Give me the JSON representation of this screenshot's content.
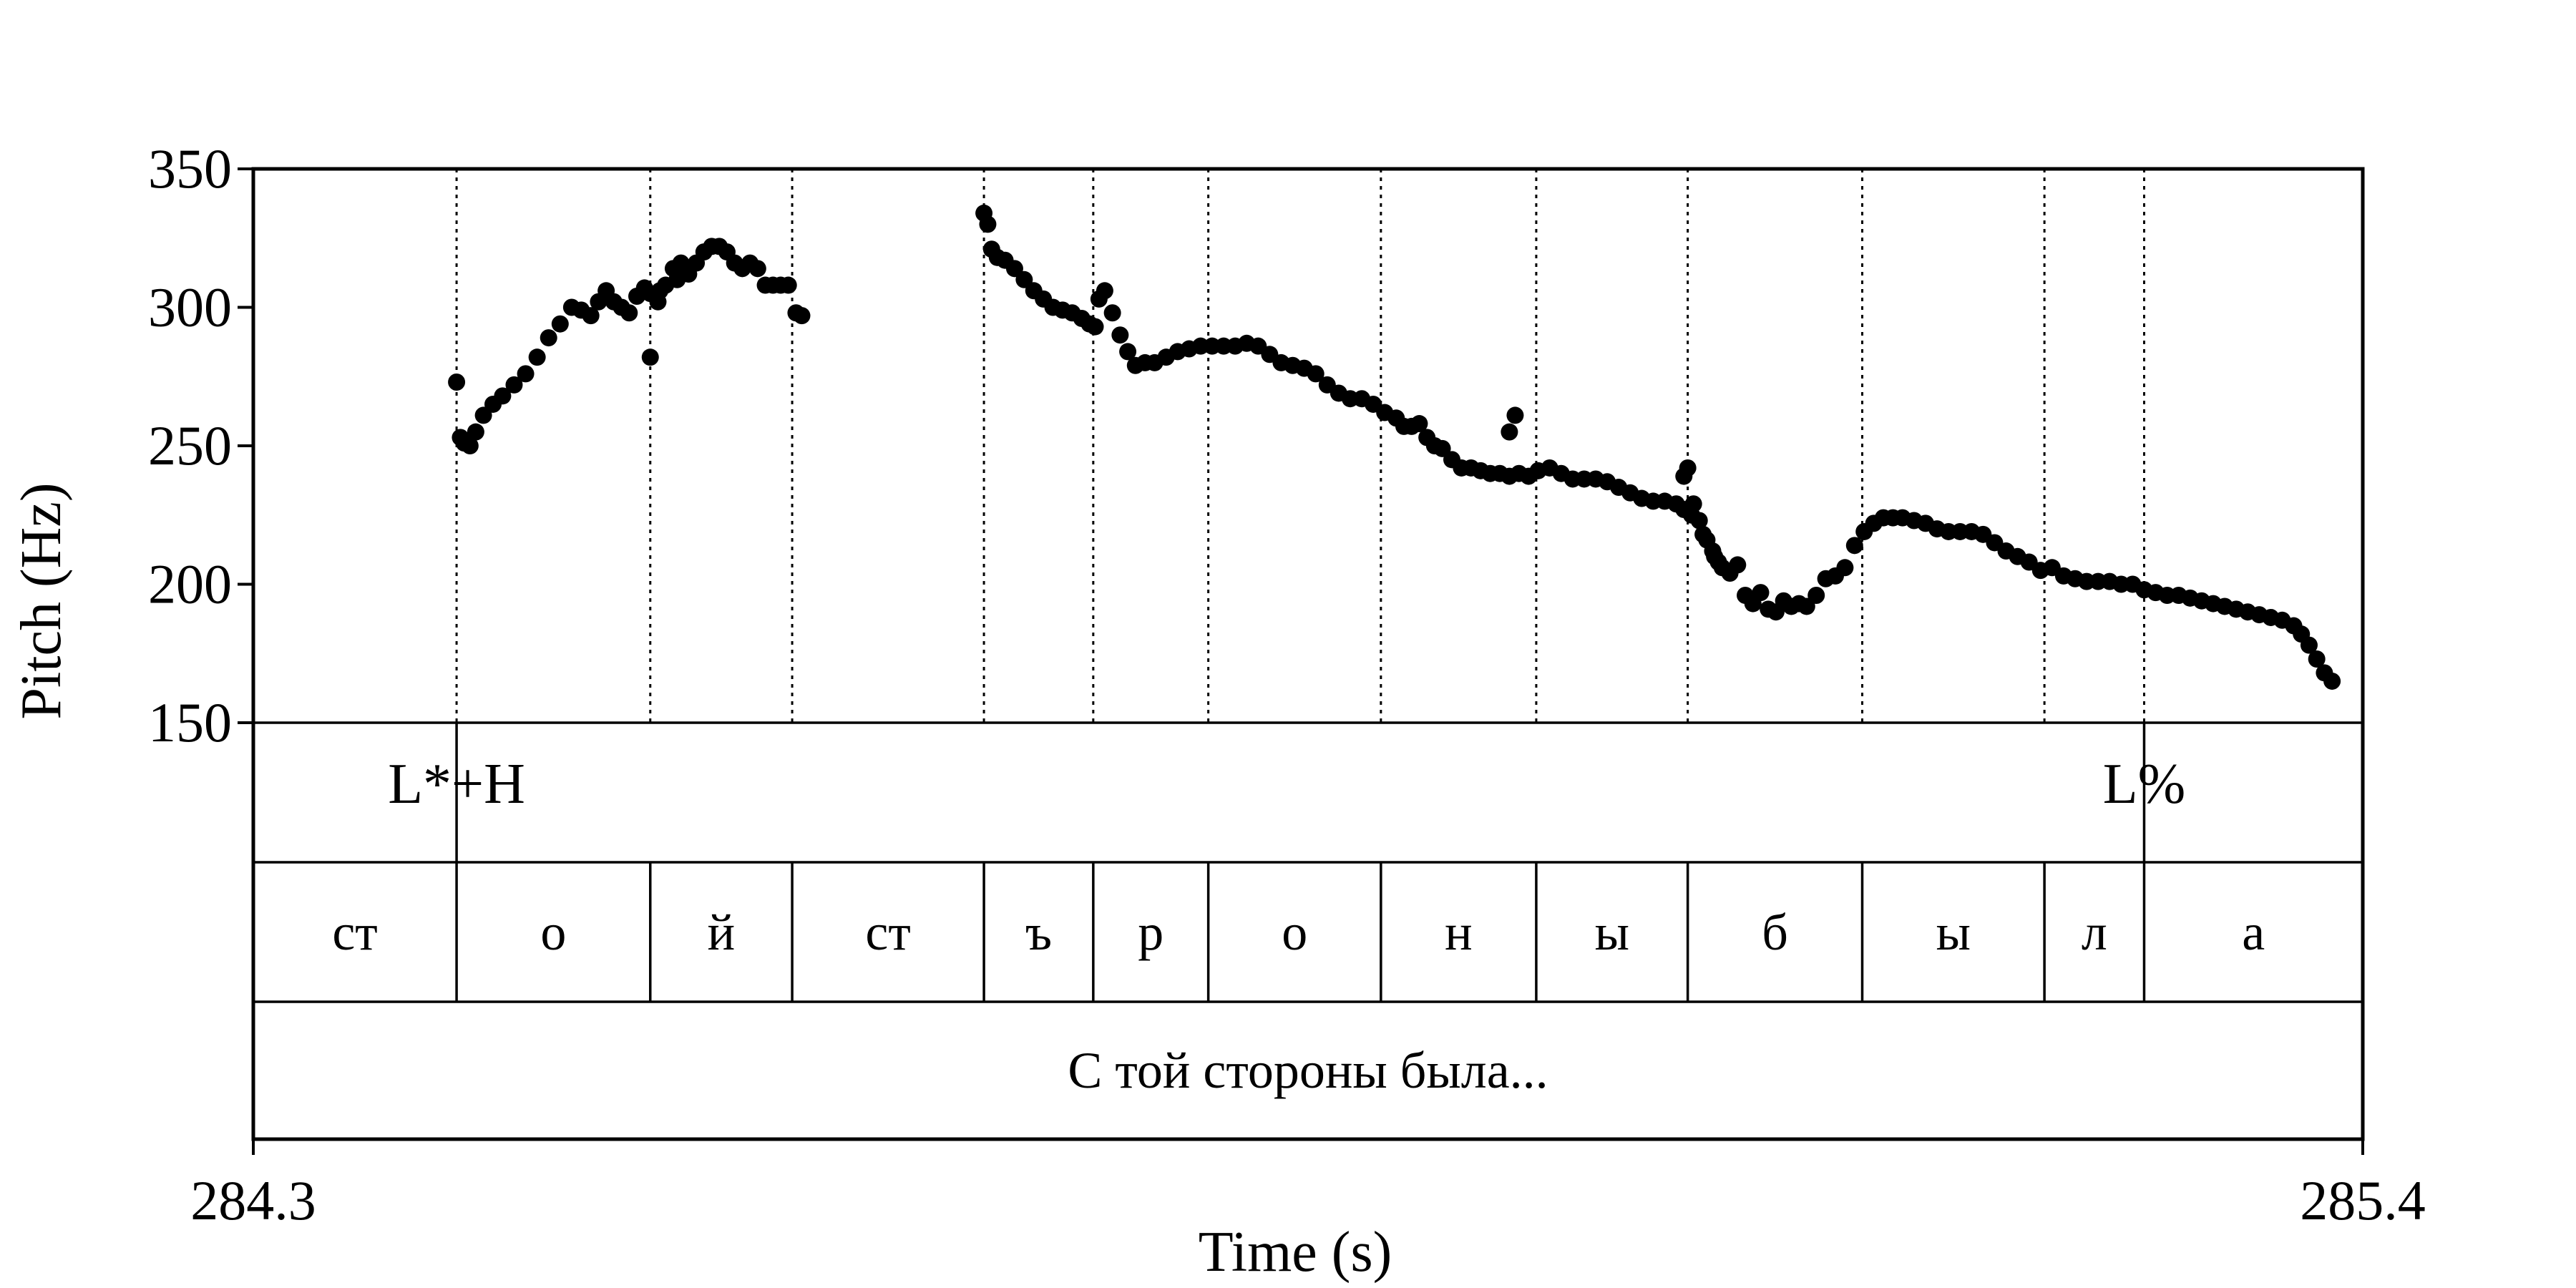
{
  "chart_data": {
    "type": "scatter",
    "xlabel": "Time (s)",
    "ylabel": "Pitch (Hz)",
    "xlim": [
      284.3,
      285.4
    ],
    "ylim": [
      150,
      350
    ],
    "x_ticks": [
      {
        "value": 284.3,
        "label": "284.3"
      },
      {
        "value": 285.4,
        "label": "285.4"
      }
    ],
    "y_ticks": [
      {
        "value": 150,
        "label": "150"
      },
      {
        "value": 200,
        "label": "200"
      },
      {
        "value": 250,
        "label": "250"
      },
      {
        "value": 300,
        "label": "300"
      },
      {
        "value": 350,
        "label": "350"
      }
    ],
    "grid": "dotted vertical lines at segment boundaries",
    "segment_boundaries": [
      284.406,
      284.507,
      284.581,
      284.681,
      284.738,
      284.798,
      284.888,
      284.969,
      285.048,
      285.139,
      285.234,
      285.286
    ],
    "tones": [
      {
        "label": "L*+H",
        "time": 284.406
      },
      {
        "label": "L%",
        "time": 285.286
      }
    ],
    "segments": [
      {
        "label": "ст",
        "start": 284.3,
        "end": 284.406
      },
      {
        "label": "о",
        "start": 284.406,
        "end": 284.507
      },
      {
        "label": "й",
        "start": 284.507,
        "end": 284.581
      },
      {
        "label": "ст",
        "start": 284.581,
        "end": 284.681
      },
      {
        "label": "ъ",
        "start": 284.681,
        "end": 284.738
      },
      {
        "label": "р",
        "start": 284.738,
        "end": 284.798
      },
      {
        "label": "о",
        "start": 284.798,
        "end": 284.888
      },
      {
        "label": "н",
        "start": 284.888,
        "end": 284.969
      },
      {
        "label": "ы",
        "start": 284.969,
        "end": 285.048
      },
      {
        "label": "б",
        "start": 285.048,
        "end": 285.139
      },
      {
        "label": "ы",
        "start": 285.139,
        "end": 285.234
      },
      {
        "label": "л",
        "start": 285.234,
        "end": 285.286
      },
      {
        "label": "а",
        "start": 285.286,
        "end": 285.4
      }
    ],
    "phrase": {
      "label": "С той стороны была...",
      "start": 284.3,
      "end": 285.4
    },
    "series": [
      {
        "x": [
          284.406,
          284.408,
          284.41,
          284.413,
          284.416,
          284.42,
          284.425,
          284.43,
          284.436,
          284.442,
          284.448,
          284.454,
          284.46,
          284.466,
          284.471,
          284.476,
          284.48,
          284.484,
          284.488,
          284.492,
          284.496,
          284.5,
          284.504,
          284.507,
          284.511,
          284.515,
          284.519,
          284.523,
          284.527,
          284.531,
          284.535,
          284.539,
          284.543,
          284.547,
          284.551,
          284.555,
          284.559,
          284.563,
          284.567,
          284.571,
          284.575,
          284.579,
          284.583,
          284.586
        ],
        "y": [
          273,
          253,
          251,
          250,
          255,
          261,
          265,
          268,
          272,
          276,
          282,
          289,
          294,
          300,
          299,
          297,
          302,
          306,
          302,
          300,
          298,
          304,
          307,
          305,
          302,
          308,
          314,
          316,
          312,
          316,
          320,
          322,
          322,
          320,
          316,
          314,
          316,
          314,
          308,
          308,
          308,
          308,
          298,
          297
        ]
      },
      {
        "x": [
          284.507,
          284.512,
          284.521
        ],
        "y": [
          282,
          306,
          310
        ]
      },
      {
        "x": [
          284.681,
          284.683,
          284.685,
          284.688,
          284.692,
          284.697,
          284.702,
          284.707,
          284.712,
          284.717,
          284.722,
          284.727,
          284.732,
          284.736,
          284.739,
          284.741,
          284.744,
          284.748,
          284.752,
          284.756,
          284.76,
          284.765,
          284.77,
          284.776,
          284.782,
          284.788,
          284.794,
          284.8,
          284.806,
          284.812,
          284.818,
          284.824,
          284.83,
          284.836,
          284.842,
          284.848,
          284.854,
          284.86,
          284.866,
          284.872,
          284.878,
          284.884,
          284.89,
          284.896,
          284.9,
          284.904,
          284.908,
          284.912,
          284.916,
          284.92,
          284.925,
          284.93,
          284.935,
          284.94,
          284.945,
          284.95,
          284.955,
          284.96,
          284.965,
          284.97,
          284.976,
          284.982,
          284.988,
          284.994,
          285.0,
          285.006,
          285.012,
          285.018,
          285.024,
          285.03,
          285.036,
          285.042,
          285.046,
          285.05,
          285.054,
          285.058,
          285.062,
          285.066,
          285.07,
          285.074,
          285.078,
          285.082,
          285.086,
          285.09,
          285.094,
          285.098,
          285.102,
          285.106,
          285.11,
          285.115,
          285.12,
          285.125,
          285.13,
          285.135,
          285.14,
          285.145,
          285.15,
          285.155,
          285.16,
          285.166,
          285.172,
          285.178,
          285.184,
          285.19,
          285.196,
          285.202,
          285.208,
          285.214,
          285.22,
          285.226,
          285.232,
          285.238,
          285.244,
          285.25,
          285.256,
          285.262,
          285.268,
          285.274,
          285.28,
          285.286,
          285.292,
          285.298,
          285.304,
          285.31,
          285.316,
          285.322,
          285.328,
          285.334,
          285.34,
          285.346,
          285.352,
          285.358,
          285.364,
          285.368,
          285.372,
          285.376,
          285.38,
          285.384
        ],
        "y": [
          334,
          330,
          321,
          318,
          317,
          314,
          310,
          306,
          303,
          300,
          299,
          298,
          296,
          294,
          293,
          303,
          306,
          298,
          290,
          284,
          279,
          280,
          280,
          282,
          284,
          285,
          286,
          286,
          286,
          286,
          287,
          286,
          283,
          280,
          279,
          278,
          276,
          272,
          269,
          267,
          267,
          265,
          262,
          260,
          257,
          257,
          258,
          253,
          250,
          249,
          245,
          242,
          242,
          241,
          240,
          240,
          239,
          240,
          239,
          241,
          242,
          240,
          238,
          238,
          238,
          237,
          235,
          233,
          231,
          230,
          230,
          229,
          227,
          225,
          223,
          216,
          210,
          206,
          204,
          207,
          196,
          193,
          197,
          191,
          190,
          194,
          192,
          193,
          192,
          196,
          202,
          203,
          206,
          214,
          219,
          222,
          224,
          224,
          224,
          223,
          222,
          220,
          219,
          219,
          219,
          218,
          215,
          212,
          210,
          208,
          205,
          206,
          203,
          202,
          201,
          201,
          201,
          200,
          200,
          198,
          197,
          196,
          196,
          195,
          194,
          193,
          192,
          191,
          190,
          189,
          188,
          187,
          185,
          182,
          178,
          173,
          168,
          165
        ]
      },
      {
        "x": [
          284.955,
          284.958,
          285.046,
          285.048,
          285.051,
          285.056,
          285.061,
          285.064
        ],
        "y": [
          255,
          261,
          239,
          242,
          229,
          218,
          212,
          208
        ]
      }
    ]
  }
}
